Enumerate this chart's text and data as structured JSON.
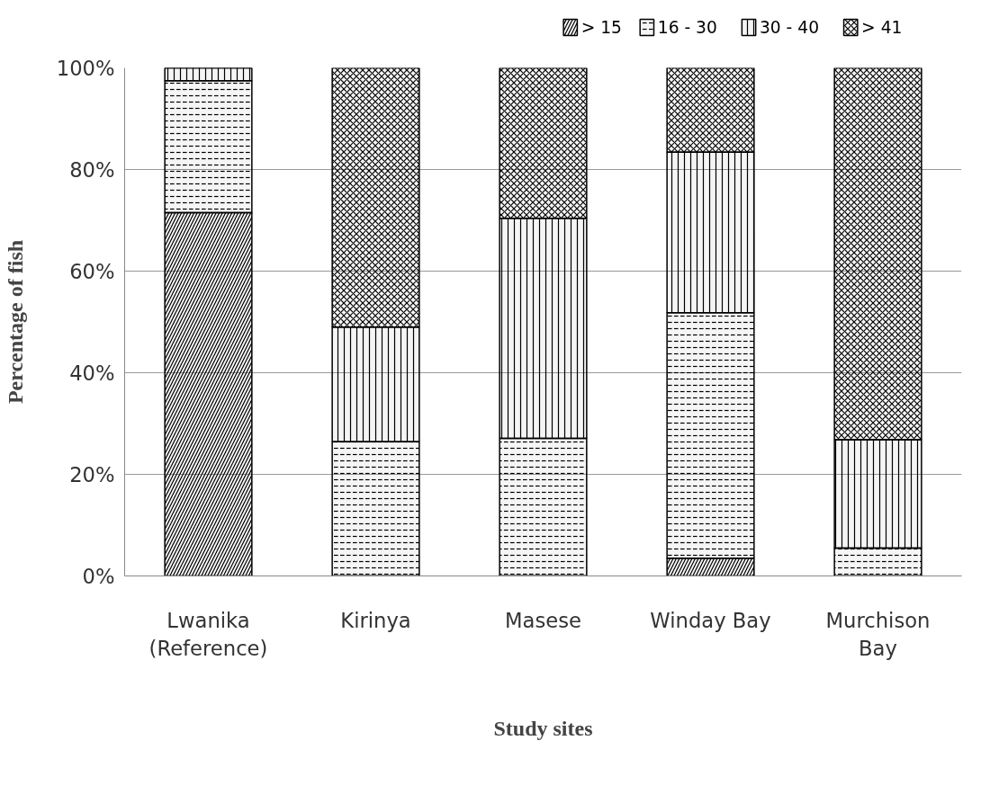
{
  "chart_data": {
    "type": "bar",
    "stacked": true,
    "xlabel": "Study sites",
    "ylabel": "Percentage of fish",
    "categories": [
      "Lwanika (Reference)",
      "Kirinya",
      "Masese",
      "Winday Bay",
      "Murchison Bay"
    ],
    "series": [
      {
        "name": "> 15",
        "color": "#000000",
        "values": [
          71.5,
          0,
          0,
          3.5,
          0
        ]
      },
      {
        "name": "16 - 30",
        "color": "#000000",
        "values": [
          26,
          26.4,
          27.1,
          48.3,
          5.5
        ]
      },
      {
        "name": "30 - 40",
        "color": "#000000",
        "values": [
          2.5,
          22.6,
          43.3,
          31.6,
          21.3
        ]
      },
      {
        "name": "> 41",
        "color": "#000000",
        "values": [
          0,
          51,
          29.6,
          16.6,
          73.2
        ]
      }
    ],
    "ylim": [
      0,
      100
    ],
    "yticks": [
      {
        "value": 0,
        "label": "0%"
      },
      {
        "value": 20,
        "label": "20%"
      },
      {
        "value": 40,
        "label": "40%"
      },
      {
        "value": 60,
        "label": "60%"
      },
      {
        "value": 80,
        "label": "80%"
      },
      {
        "value": 100,
        "label": "100%"
      }
    ],
    "grid": "y",
    "legend": "top right"
  }
}
